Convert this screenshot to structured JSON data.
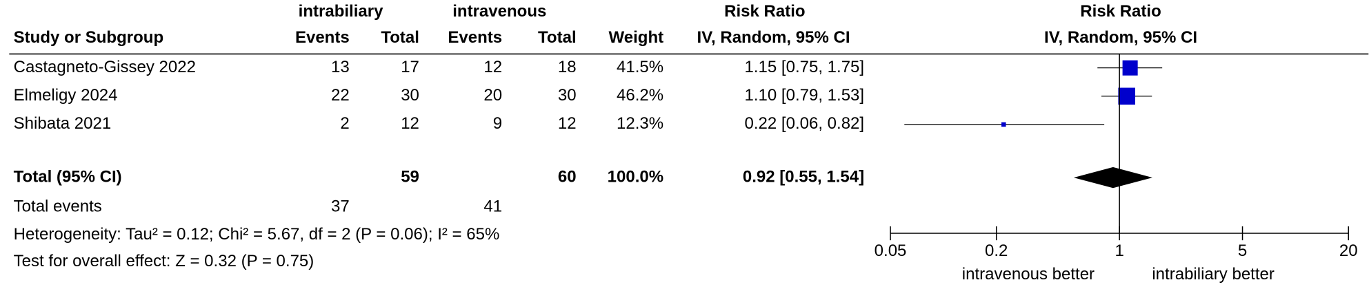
{
  "chart_data": {
    "type": "forest",
    "group_headers": [
      "intrabiliary",
      "intravenous"
    ],
    "effect_header": "Risk Ratio",
    "columns": [
      "Study or Subgroup",
      "Events",
      "Total",
      "Events",
      "Total",
      "Weight",
      "IV, Random, 95% CI"
    ],
    "studies": [
      {
        "name": "Castagneto-Gissey 2022",
        "events1": 13,
        "total1": 17,
        "events2": 12,
        "total2": 18,
        "weight": 41.5,
        "weight_label": "41.5%",
        "rr": 1.15,
        "ci": [
          0.75,
          1.75
        ],
        "rr_label": "1.15 [0.75, 1.75]"
      },
      {
        "name": "Elmeligy 2024",
        "events1": 22,
        "total1": 30,
        "events2": 20,
        "total2": 30,
        "weight": 46.2,
        "weight_label": "46.2%",
        "rr": 1.1,
        "ci": [
          0.79,
          1.53
        ],
        "rr_label": "1.10 [0.79, 1.53]"
      },
      {
        "name": "Shibata 2021",
        "events1": 2,
        "total1": 12,
        "events2": 9,
        "total2": 12,
        "weight": 12.3,
        "weight_label": "12.3%",
        "rr": 0.22,
        "ci": [
          0.06,
          0.82
        ],
        "rr_label": "0.22 [0.06, 0.82]"
      }
    ],
    "total": {
      "name": "Total (95% CI)",
      "total1": 59,
      "total2": 60,
      "weight": 100,
      "weight_label": "100.0%",
      "rr": 0.92,
      "ci": [
        0.55,
        1.54
      ],
      "rr_label": "0.92 [0.55, 1.54]"
    },
    "events_row": {
      "name": "Total events",
      "events1": 37,
      "events2": 41
    },
    "heterogeneity": "Heterogeneity: Tau² = 0.12; Chi² = 5.67, df = 2 (P = 0.06); I² = 65%",
    "overall_effect": "Test for overall effect: Z = 0.32 (P = 0.75)",
    "xlim": [
      0.05,
      20
    ],
    "xticks": [
      0.05,
      0.2,
      1,
      5,
      20
    ],
    "log_x": true,
    "xlabels": [
      "intravenous better",
      "intrabiliary better"
    ],
    "color": "#0000cc"
  }
}
